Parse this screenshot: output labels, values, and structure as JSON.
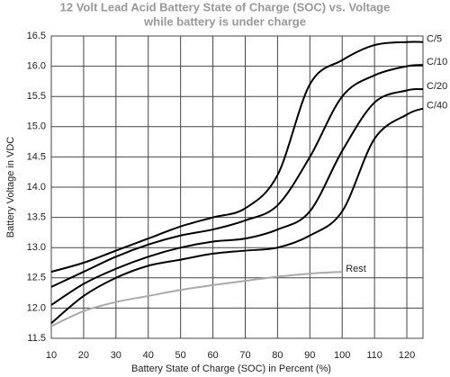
{
  "chart_data": {
    "type": "line",
    "title": "12 Volt Lead Acid Battery State of Charge (SOC) vs. Voltage",
    "subtitle": "while battery is under charge",
    "x_label": "Battery State of Charge (SOC) in Percent (%)",
    "y_label": "Battery Voltage in VDC",
    "x": [
      10,
      20,
      30,
      40,
      50,
      60,
      70,
      80,
      90,
      100,
      110,
      120,
      125
    ],
    "series": [
      {
        "name": "C/5",
        "color": "#000000",
        "values": [
          12.6,
          12.75,
          12.95,
          13.15,
          13.35,
          13.5,
          13.65,
          14.2,
          15.7,
          16.1,
          16.35,
          16.4,
          16.4
        ]
      },
      {
        "name": "C/10",
        "color": "#000000",
        "values": [
          12.35,
          12.6,
          12.85,
          13.05,
          13.2,
          13.3,
          13.45,
          13.7,
          14.5,
          15.5,
          15.85,
          16.0,
          16.02
        ]
      },
      {
        "name": "C/20",
        "color": "#000000",
        "values": [
          12.05,
          12.4,
          12.65,
          12.85,
          13.0,
          13.1,
          13.15,
          13.3,
          13.6,
          14.6,
          15.4,
          15.6,
          15.62
        ]
      },
      {
        "name": "C/40",
        "color": "#000000",
        "values": [
          11.75,
          12.2,
          12.5,
          12.7,
          12.8,
          12.9,
          12.95,
          13.0,
          13.2,
          13.6,
          14.8,
          15.2,
          15.3
        ]
      },
      {
        "name": "Rest",
        "color": "#aaaaaa",
        "values": [
          11.7,
          11.95,
          12.1,
          12.2,
          12.3,
          12.38,
          12.45,
          12.52,
          12.57,
          12.6,
          null,
          null,
          null
        ]
      }
    ],
    "xlim": [
      10,
      125
    ],
    "xticks": [
      10,
      20,
      30,
      40,
      50,
      60,
      70,
      80,
      90,
      100,
      110,
      120
    ],
    "ylim": [
      11.5,
      16.5
    ],
    "yticks": [
      11.5,
      {
        "value": 12,
        "label": "12.0"
      },
      12.5,
      {
        "value": 13,
        "label": "13.0"
      },
      13.5,
      {
        "value": 14,
        "label": "14.0"
      },
      14.5,
      {
        "value": 15,
        "label": "15.0"
      },
      15.5,
      {
        "value": 16,
        "label": "16.0"
      },
      16.5
    ],
    "grid": true
  }
}
